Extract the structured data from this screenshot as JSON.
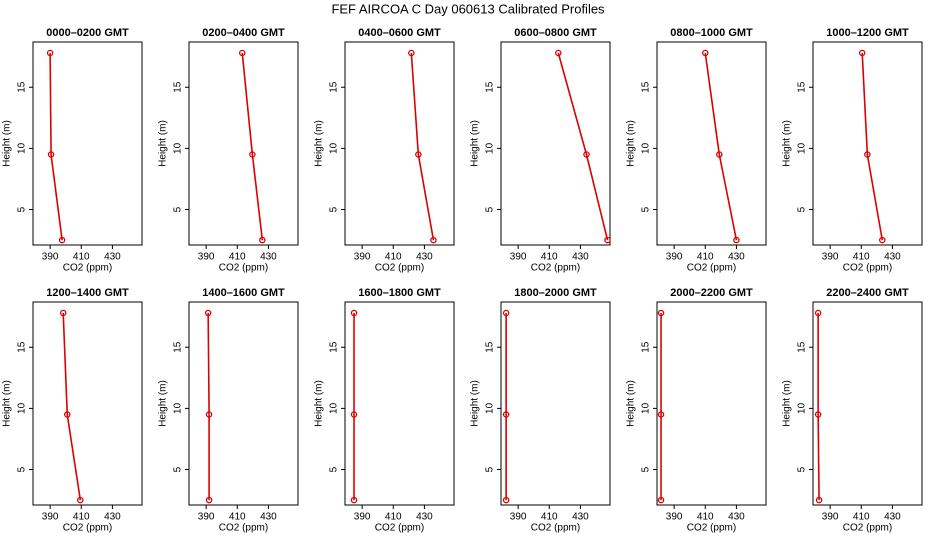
{
  "title": "FEF AIRCOA C  Day 060613  Calibrated Profiles",
  "chart_data": [
    {
      "type": "line",
      "title": "0000–0200 GMT",
      "xlabel": "CO2 (ppm)",
      "ylabel": "Height (m)",
      "xlim": [
        379,
        449
      ],
      "ylim": [
        2.1,
        18.7
      ],
      "xticks": [
        390,
        410,
        430
      ],
      "yticks": [
        5,
        10,
        15
      ],
      "series": [
        {
          "color": "#dd0000",
          "x": [
            397.7,
            390.6,
            390.0
          ],
          "values": [
            2.5,
            9.5,
            17.8
          ]
        }
      ]
    },
    {
      "type": "line",
      "title": "0200–0400 GMT",
      "xlabel": "CO2 (ppm)",
      "ylabel": "Height (m)",
      "xlim": [
        379,
        449
      ],
      "ylim": [
        2.1,
        18.7
      ],
      "xticks": [
        390,
        410,
        430
      ],
      "yticks": [
        5,
        10,
        15
      ],
      "series": [
        {
          "color": "#dd0000",
          "x": [
            426.1,
            419.7,
            413.2
          ],
          "values": [
            2.5,
            9.5,
            17.8
          ]
        }
      ]
    },
    {
      "type": "line",
      "title": "0400–0600 GMT",
      "xlabel": "CO2 (ppm)",
      "ylabel": "Height (m)",
      "xlim": [
        379,
        449
      ],
      "ylim": [
        2.1,
        18.7
      ],
      "xticks": [
        390,
        410,
        430
      ],
      "yticks": [
        5,
        10,
        15
      ],
      "series": [
        {
          "color": "#dd0000",
          "x": [
            435.8,
            426.1,
            421.6
          ],
          "values": [
            2.5,
            9.5,
            17.8
          ]
        }
      ]
    },
    {
      "type": "line",
      "title": "0600–0800 GMT",
      "xlabel": "CO2 (ppm)",
      "ylabel": "Height (m)",
      "xlim": [
        379,
        449
      ],
      "ylim": [
        2.1,
        18.7
      ],
      "xticks": [
        390,
        410,
        430
      ],
      "yticks": [
        5,
        10,
        15
      ],
      "series": [
        {
          "color": "#dd0000",
          "x": [
            447.4,
            433.9,
            415.8
          ],
          "values": [
            2.5,
            9.5,
            17.8
          ]
        }
      ]
    },
    {
      "type": "line",
      "title": "0800–1000 GMT",
      "xlabel": "CO2 (ppm)",
      "ylabel": "Height (m)",
      "xlim": [
        379,
        449
      ],
      "ylim": [
        2.1,
        18.7
      ],
      "xticks": [
        390,
        410,
        430
      ],
      "yticks": [
        5,
        10,
        15
      ],
      "series": [
        {
          "color": "#dd0000",
          "x": [
            430.0,
            419.0,
            410.0
          ],
          "values": [
            2.5,
            9.5,
            17.8
          ]
        }
      ]
    },
    {
      "type": "line",
      "title": "1000–1200 GMT",
      "xlabel": "CO2 (ppm)",
      "ylabel": "Height (m)",
      "xlim": [
        379,
        449
      ],
      "ylim": [
        2.1,
        18.7
      ],
      "xticks": [
        390,
        410,
        430
      ],
      "yticks": [
        5,
        10,
        15
      ],
      "series": [
        {
          "color": "#dd0000",
          "x": [
            423.5,
            413.9,
            410.6
          ],
          "values": [
            2.5,
            9.5,
            17.8
          ]
        }
      ]
    },
    {
      "type": "line",
      "title": "1200–1400 GMT",
      "xlabel": "CO2 (ppm)",
      "ylabel": "Height (m)",
      "xlim": [
        379,
        449
      ],
      "ylim": [
        2.1,
        18.7
      ],
      "xticks": [
        390,
        410,
        430
      ],
      "yticks": [
        5,
        10,
        15
      ],
      "series": [
        {
          "color": "#dd0000",
          "x": [
            409.4,
            401.0,
            398.4
          ],
          "values": [
            2.5,
            9.5,
            17.8
          ]
        }
      ]
    },
    {
      "type": "line",
      "title": "1400–1600 GMT",
      "xlabel": "CO2 (ppm)",
      "ylabel": "Height (m)",
      "xlim": [
        379,
        449
      ],
      "ylim": [
        2.1,
        18.7
      ],
      "xticks": [
        390,
        410,
        430
      ],
      "yticks": [
        5,
        10,
        15
      ],
      "series": [
        {
          "color": "#dd0000",
          "x": [
            391.9,
            391.9,
            391.3
          ],
          "values": [
            2.5,
            9.5,
            17.8
          ]
        }
      ]
    },
    {
      "type": "line",
      "title": "1600–1800 GMT",
      "xlabel": "CO2 (ppm)",
      "ylabel": "Height (m)",
      "xlim": [
        379,
        449
      ],
      "ylim": [
        2.1,
        18.7
      ],
      "xticks": [
        390,
        410,
        430
      ],
      "yticks": [
        5,
        10,
        15
      ],
      "series": [
        {
          "color": "#dd0000",
          "x": [
            384.8,
            384.8,
            384.8
          ],
          "values": [
            2.5,
            9.5,
            17.8
          ]
        }
      ]
    },
    {
      "type": "line",
      "title": "1800–2000 GMT",
      "xlabel": "CO2 (ppm)",
      "ylabel": "Height (m)",
      "xlim": [
        379,
        449
      ],
      "ylim": [
        2.1,
        18.7
      ],
      "xticks": [
        390,
        410,
        430
      ],
      "yticks": [
        5,
        10,
        15
      ],
      "series": [
        {
          "color": "#dd0000",
          "x": [
            382.3,
            382.3,
            382.3
          ],
          "values": [
            2.5,
            9.5,
            17.8
          ]
        }
      ]
    },
    {
      "type": "line",
      "title": "2000–2200 GMT",
      "xlabel": "CO2 (ppm)",
      "ylabel": "Height (m)",
      "xlim": [
        379,
        449
      ],
      "ylim": [
        2.1,
        18.7
      ],
      "xticks": [
        390,
        410,
        430
      ],
      "yticks": [
        5,
        10,
        15
      ],
      "series": [
        {
          "color": "#dd0000",
          "x": [
            381.6,
            381.6,
            381.6
          ],
          "values": [
            2.5,
            9.5,
            17.8
          ]
        }
      ]
    },
    {
      "type": "line",
      "title": "2200–2400 GMT",
      "xlabel": "CO2 (ppm)",
      "ylabel": "Height (m)",
      "xlim": [
        379,
        449
      ],
      "ylim": [
        2.1,
        18.7
      ],
      "xticks": [
        390,
        410,
        430
      ],
      "yticks": [
        5,
        10,
        15
      ],
      "series": [
        {
          "color": "#dd0000",
          "x": [
            382.9,
            382.3,
            382.3
          ],
          "values": [
            2.5,
            9.5,
            17.8
          ]
        }
      ]
    }
  ]
}
